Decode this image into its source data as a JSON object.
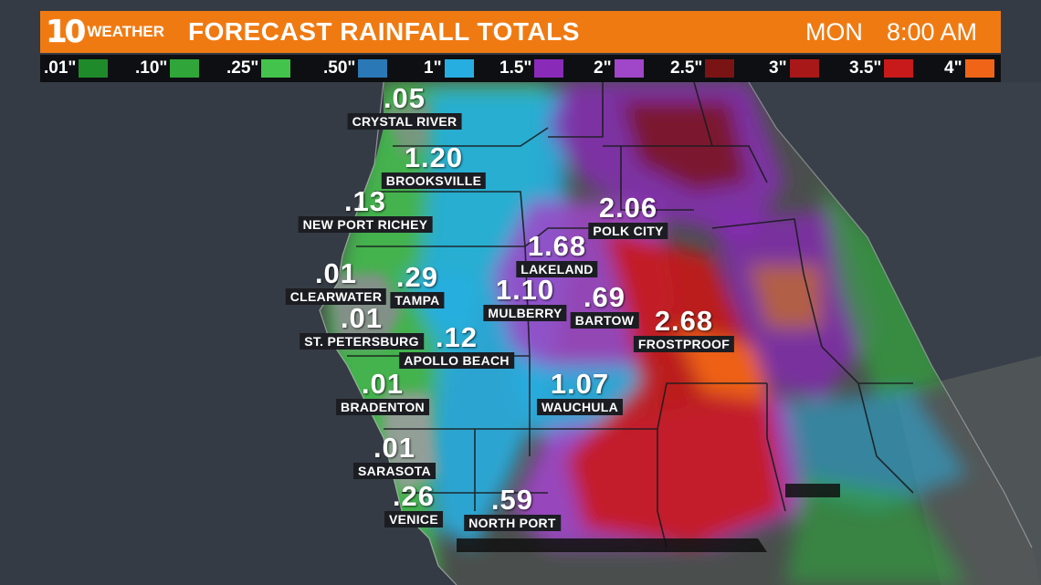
{
  "header": {
    "logo_number": "10",
    "logo_word": "WEATHER",
    "title": "FORECAST RAINFALL TOTALS",
    "day": "MON",
    "time": "8:00 AM"
  },
  "colors": {
    "header_bg": "#f07a12",
    "legend_bg": "#0d0f12",
    "water": "#3a4049",
    "land": "#4a4f4d"
  },
  "legend": [
    {
      "label": ".01\"",
      "color": "#1f8a2a"
    },
    {
      "label": ".10\"",
      "color": "#2fa53a"
    },
    {
      "label": ".25\"",
      "color": "#43c34c"
    },
    {
      "label": ".50\"",
      "color": "#2a78b5"
    },
    {
      "label": "1\"",
      "color": "#27aee0"
    },
    {
      "label": "1.5\"",
      "color": "#8a2ab8"
    },
    {
      "label": "2\"",
      "color": "#a046c8"
    },
    {
      "label": "2.5\"",
      "color": "#7a1414"
    },
    {
      "label": "3\"",
      "color": "#a81818"
    },
    {
      "label": "3.5\"",
      "color": "#c81a1a"
    },
    {
      "label": "4\"",
      "color": "#f06418"
    }
  ],
  "cities": [
    {
      "value": ".05",
      "name": "CRYSTAL RIVER"
    },
    {
      "value": "1.20",
      "name": "BROOKSVILLE"
    },
    {
      "value": ".13",
      "name": "NEW PORT RICHEY"
    },
    {
      "value": "2.06",
      "name": "POLK CITY"
    },
    {
      "value": "1.68",
      "name": "LAKELAND"
    },
    {
      "value": ".01",
      "name": "CLEARWATER"
    },
    {
      "value": ".29",
      "name": "TAMPA"
    },
    {
      "value": "1.10",
      "name": "MULBERRY"
    },
    {
      "value": ".69",
      "name": "BARTOW"
    },
    {
      "value": ".01",
      "name": "ST. PETERSBURG"
    },
    {
      "value": ".12",
      "name": "APOLLO BEACH"
    },
    {
      "value": "2.68",
      "name": "FROSTPROOF"
    },
    {
      "value": ".01",
      "name": "BRADENTON"
    },
    {
      "value": "1.07",
      "name": "WAUCHULA"
    },
    {
      "value": ".01",
      "name": "SARASOTA"
    },
    {
      "value": ".26",
      "name": "VENICE"
    },
    {
      "value": ".59",
      "name": "NORTH PORT"
    }
  ]
}
